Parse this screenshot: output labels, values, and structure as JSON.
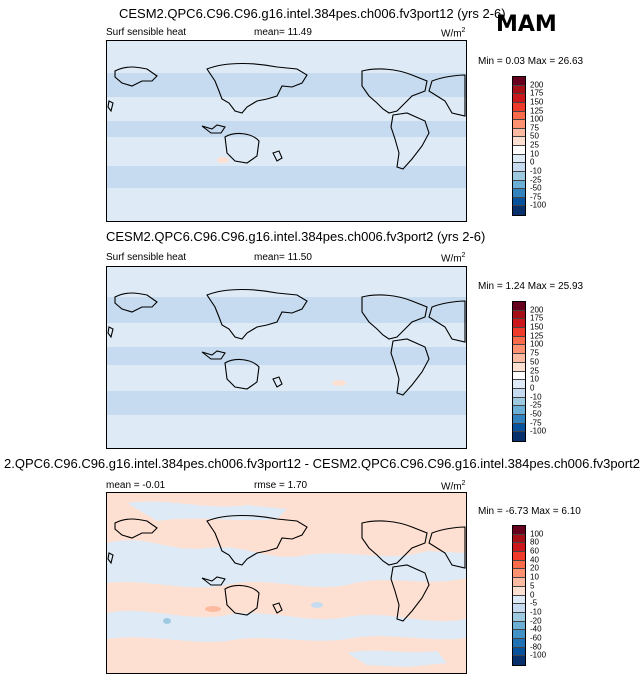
{
  "season": "MAM",
  "panels": [
    {
      "title": "CESM2.QPC6.C96.C96.g16.intel.384pes.ch006.fv3port12 (yrs 2-6)",
      "left_label": "Surf sensible heat",
      "mean_text": "mean=  11.49",
      "units": "W/m",
      "units_sup": "2",
      "minmax": "Min =  0.03 Max =  26.63",
      "colorbar_labels": [
        "200",
        "175",
        "150",
        "125",
        "100",
        "75",
        "50",
        "25",
        "10",
        "0",
        "-10",
        "-25",
        "-50",
        "-75",
        "-100"
      ],
      "colorbar_colors": [
        "#67001f",
        "#a50f15",
        "#cb181d",
        "#ef3b2c",
        "#fb6a4a",
        "#fc9272",
        "#fcbba1",
        "#fee0d2",
        "#ffffff",
        "#deebf7",
        "#c6dbef",
        "#9ecae1",
        "#6baed6",
        "#3182bd",
        "#08519c",
        "#08306b"
      ]
    },
    {
      "title": "CESM2.QPC6.C96.C96.g16.intel.384pes.ch006.fv3port2 (yrs 2-6)",
      "left_label": "Surf sensible heat",
      "mean_text": "mean=  11.50",
      "units": "W/m",
      "units_sup": "2",
      "minmax": "Min =  1.24 Max =  25.93",
      "colorbar_labels": [
        "200",
        "175",
        "150",
        "125",
        "100",
        "75",
        "50",
        "25",
        "10",
        "0",
        "-10",
        "-25",
        "-50",
        "-75",
        "-100"
      ],
      "colorbar_colors": [
        "#67001f",
        "#a50f15",
        "#cb181d",
        "#ef3b2c",
        "#fb6a4a",
        "#fc9272",
        "#fcbba1",
        "#fee0d2",
        "#ffffff",
        "#deebf7",
        "#c6dbef",
        "#9ecae1",
        "#6baed6",
        "#3182bd",
        "#08519c",
        "#08306b"
      ]
    },
    {
      "title": "2.QPC6.C96.C96.g16.intel.384pes.ch006.fv3port12 - CESM2.QPC6.C96.C96.g16.intel.384pes.ch006.fv3port2",
      "left_label": "mean =  -0.01",
      "mean_text": "rmse =  1.70",
      "units": "W/m",
      "units_sup": "2",
      "minmax": "Min =  -6.73 Max =  6.10",
      "colorbar_labels": [
        "100",
        "80",
        "60",
        "40",
        "20",
        "10",
        "5",
        "0",
        "-5",
        "-10",
        "-20",
        "-40",
        "-60",
        "-80",
        "-100"
      ],
      "colorbar_colors": [
        "#67001f",
        "#a50f15",
        "#cb181d",
        "#ef3b2c",
        "#fb6a4a",
        "#fc9272",
        "#fcbba1",
        "#fee0d2",
        "#deebf7",
        "#c6dbef",
        "#9ecae1",
        "#6baed6",
        "#4292c6",
        "#2171b5",
        "#08519c",
        "#08306b"
      ]
    }
  ]
}
